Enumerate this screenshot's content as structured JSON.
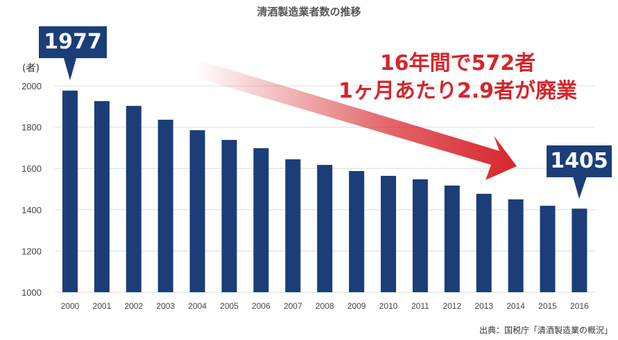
{
  "chart_data": {
    "type": "bar",
    "title": "清酒製造業者数の推移",
    "ylabel": "(者)",
    "xlabel": "",
    "ylim": [
      1000,
      2000
    ],
    "yticks": [
      1000,
      1200,
      1400,
      1600,
      1800,
      2000
    ],
    "grid": true,
    "categories": [
      "2000",
      "2001",
      "2002",
      "2003",
      "2004",
      "2005",
      "2006",
      "2007",
      "2008",
      "2009",
      "2010",
      "2011",
      "2012",
      "2013",
      "2014",
      "2015",
      "2016"
    ],
    "values": [
      1977,
      1926,
      1903,
      1836,
      1785,
      1738,
      1698,
      1644,
      1617,
      1587,
      1564,
      1547,
      1517,
      1477,
      1450,
      1419,
      1405
    ],
    "bar_color": "#1b3e78",
    "callouts": {
      "first": "1977",
      "last": "1405"
    },
    "annotation": {
      "line1": "16年間で572者",
      "line2": "1ヶ月あたり2.9者が廃業",
      "color": "#d6252b"
    },
    "source": "出典：国税庁「清酒製造業の概況」"
  }
}
